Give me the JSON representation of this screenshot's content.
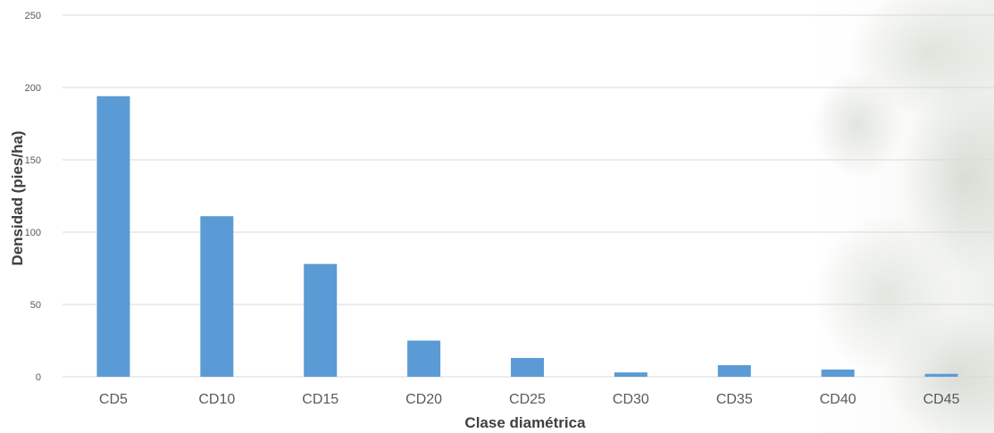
{
  "chart_data": {
    "type": "bar",
    "title": "",
    "xlabel": "Clase diamétrica",
    "ylabel": "Densidad (pies/ha)",
    "categories": [
      "CD5",
      "CD10",
      "CD15",
      "CD20",
      "CD25",
      "CD30",
      "CD35",
      "CD40",
      "CD45"
    ],
    "values": [
      194,
      111,
      78,
      25,
      13,
      3,
      8,
      5,
      2
    ],
    "ylim": [
      0,
      250
    ],
    "yticks": [
      "0",
      "50",
      "100",
      "150",
      "200",
      "250"
    ],
    "grid": true,
    "legend": "none",
    "bar_color": "#5b9bd5"
  }
}
